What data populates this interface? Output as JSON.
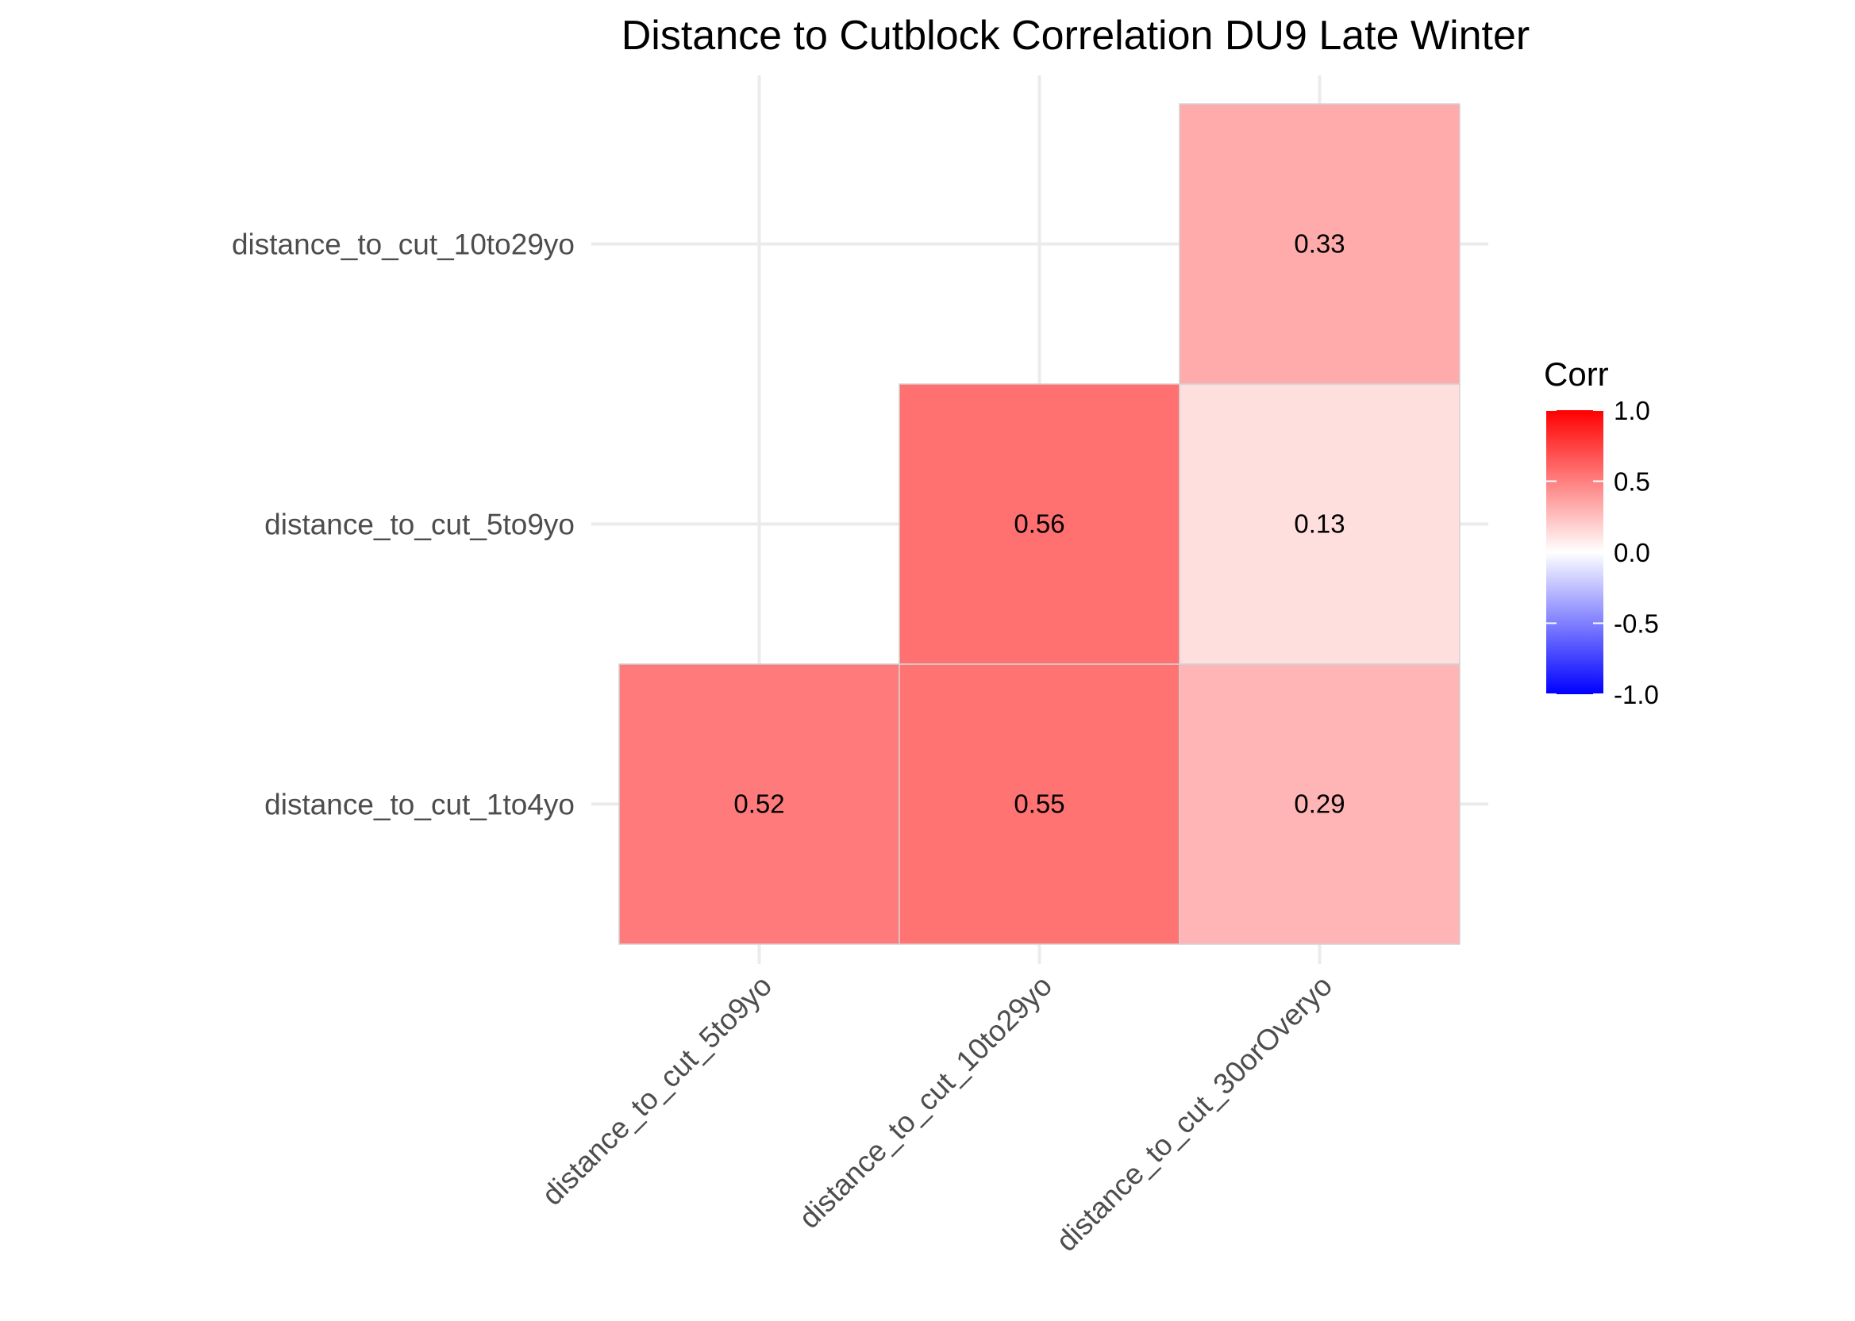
{
  "chart_data": {
    "type": "heatmap",
    "title": "Distance to Cutblock Correlation DU9 Late Winter",
    "xlabel": "",
    "ylabel": "",
    "x_categories": [
      "distance_to_cut_5to9yo",
      "distance_to_cut_10to29yo",
      "distance_to_cut_30orOveryo"
    ],
    "y_categories": [
      "distance_to_cut_1to4yo",
      "distance_to_cut_5to9yo",
      "distance_to_cut_10to29yo"
    ],
    "cells": [
      {
        "x": "distance_to_cut_5to9yo",
        "y": "distance_to_cut_1to4yo",
        "value": 0.52,
        "label": "0.52"
      },
      {
        "x": "distance_to_cut_10to29yo",
        "y": "distance_to_cut_1to4yo",
        "value": 0.55,
        "label": "0.55"
      },
      {
        "x": "distance_to_cut_30orOveryo",
        "y": "distance_to_cut_1to4yo",
        "value": 0.29,
        "label": "0.29"
      },
      {
        "x": "distance_to_cut_10to29yo",
        "y": "distance_to_cut_5to9yo",
        "value": 0.56,
        "label": "0.56"
      },
      {
        "x": "distance_to_cut_30orOveryo",
        "y": "distance_to_cut_5to9yo",
        "value": 0.13,
        "label": "0.13"
      },
      {
        "x": "distance_to_cut_30orOveryo",
        "y": "distance_to_cut_10to29yo",
        "value": 0.33,
        "label": "0.33"
      }
    ],
    "legend": {
      "title": "Corr",
      "position": "right",
      "range": [
        -1,
        1
      ],
      "ticks": [
        {
          "value": 1,
          "label": "1.0"
        },
        {
          "value": 0.5,
          "label": "0.5"
        },
        {
          "value": 0,
          "label": "0.0"
        },
        {
          "value": -0.5,
          "label": "-0.5"
        },
        {
          "value": -1,
          "label": "-1.0"
        }
      ],
      "colors": {
        "low": "#0000ff",
        "mid": "#ffffff",
        "high": "#ff0000"
      }
    },
    "grid": true
  }
}
